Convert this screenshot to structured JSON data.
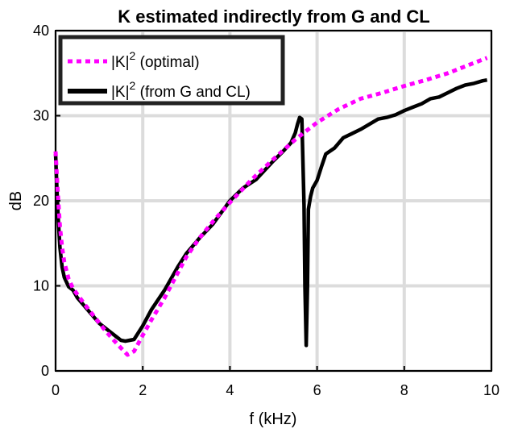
{
  "chart_data": {
    "type": "line",
    "title": "K estimated indirectly from G and CL",
    "xlabel": "f (kHz)",
    "ylabel": "dB",
    "xlim": [
      0,
      10
    ],
    "ylim": [
      0,
      40
    ],
    "xticks": [
      0,
      2,
      4,
      6,
      8,
      10
    ],
    "yticks": [
      0,
      10,
      20,
      30,
      40
    ],
    "grid": true,
    "legend_position": "top-left",
    "series": [
      {
        "name": "optimal",
        "legend_sup": "2",
        "legend_tail": " (optimal)",
        "legend_head": "|K|",
        "color": "#ff00ff",
        "style": "dotted",
        "x": [
          0,
          0.05,
          0.1,
          0.15,
          0.2,
          0.3,
          0.4,
          0.5,
          0.7,
          0.9,
          1.1,
          1.3,
          1.5,
          1.65,
          1.8,
          2.0,
          2.2,
          2.5,
          2.8,
          3.0,
          3.3,
          3.6,
          4.0,
          4.5,
          5.0,
          5.5,
          6.0,
          6.5,
          7.0,
          7.5,
          8.0,
          8.5,
          9.0,
          9.5,
          9.9
        ],
        "y": [
          25.8,
          21.0,
          17.0,
          14.5,
          12.8,
          10.8,
          9.7,
          9.0,
          7.6,
          6.3,
          5.0,
          3.8,
          2.7,
          1.9,
          2.3,
          4.2,
          6.0,
          8.6,
          11.5,
          13.4,
          15.6,
          17.5,
          19.8,
          22.5,
          24.9,
          27.2,
          29.2,
          30.8,
          32.0,
          32.7,
          33.5,
          34.2,
          35.0,
          36.0,
          36.8
        ]
      },
      {
        "name": "from G and CL",
        "legend_sup": "2",
        "legend_tail": " (from G and CL)",
        "legend_head": "|K|",
        "color": "#000000",
        "style": "solid",
        "x": [
          0,
          0.03,
          0.06,
          0.1,
          0.15,
          0.2,
          0.3,
          0.4,
          0.5,
          0.6,
          0.8,
          1.0,
          1.2,
          1.4,
          1.5,
          1.6,
          1.7,
          1.8,
          2.0,
          2.2,
          2.5,
          2.8,
          3.0,
          3.3,
          3.6,
          4.0,
          4.3,
          4.6,
          5.0,
          5.2,
          5.4,
          5.5,
          5.55,
          5.6,
          5.65,
          5.7,
          5.72,
          5.75,
          5.78,
          5.8,
          5.85,
          5.9,
          6.0,
          6.1,
          6.2,
          6.4,
          6.6,
          6.8,
          7.0,
          7.2,
          7.4,
          7.6,
          7.8,
          8.0,
          8.2,
          8.4,
          8.6,
          8.8,
          9.0,
          9.2,
          9.4,
          9.6,
          9.8,
          9.9
        ],
        "y": [
          25.5,
          21.5,
          18.0,
          14.5,
          12.2,
          11.0,
          9.9,
          9.5,
          8.6,
          8.0,
          6.8,
          5.6,
          4.8,
          4.0,
          3.6,
          3.5,
          3.6,
          3.7,
          5.3,
          7.2,
          9.5,
          12.2,
          13.8,
          15.6,
          17.2,
          20.0,
          21.5,
          22.5,
          24.7,
          25.7,
          26.8,
          28.0,
          29.0,
          29.8,
          29.6,
          19.5,
          10.0,
          3.0,
          10.0,
          19.0,
          20.5,
          21.5,
          22.4,
          24.0,
          25.5,
          26.2,
          27.4,
          27.9,
          28.4,
          29.0,
          29.6,
          29.8,
          30.1,
          30.6,
          31.0,
          31.4,
          32.0,
          32.2,
          32.7,
          33.2,
          33.6,
          33.8,
          34.1,
          34.2
        ]
      }
    ]
  }
}
